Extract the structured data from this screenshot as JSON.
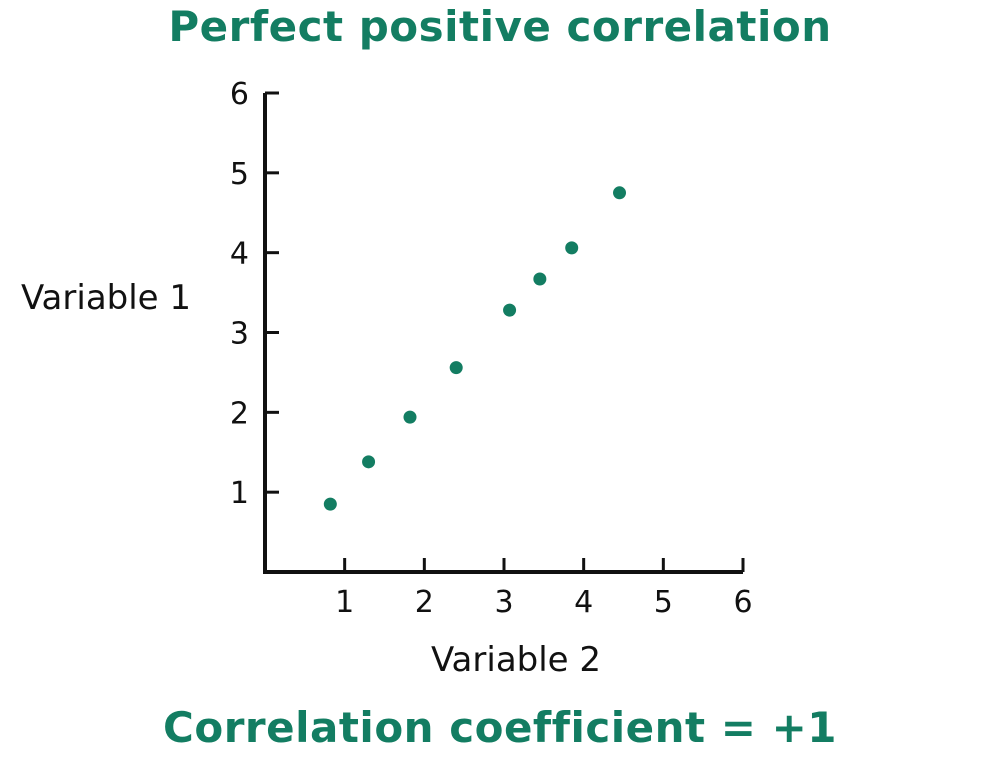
{
  "chart_data": {
    "type": "scatter",
    "title": "Perfect positive correlation",
    "subtitle": "Correlation coefficient = +1",
    "xlabel": "Variable 2",
    "ylabel": "Variable 1",
    "xlim": [
      0,
      6
    ],
    "ylim": [
      0,
      6
    ],
    "xticks": [
      "1",
      "2",
      "3",
      "4",
      "5",
      "6"
    ],
    "yticks": [
      "1",
      "2",
      "3",
      "4",
      "5",
      "6"
    ],
    "grid": false,
    "series": [
      {
        "points": [
          {
            "x": 0.82,
            "y": 0.85
          },
          {
            "x": 1.3,
            "y": 1.38
          },
          {
            "x": 1.82,
            "y": 1.94
          },
          {
            "x": 2.4,
            "y": 2.56
          },
          {
            "x": 3.07,
            "y": 3.28
          },
          {
            "x": 3.45,
            "y": 3.67
          },
          {
            "x": 3.85,
            "y": 4.06
          },
          {
            "x": 4.45,
            "y": 4.75
          }
        ]
      }
    ],
    "colors": {
      "points": "#137d62",
      "title": "#137d62",
      "axes": "#111111"
    }
  }
}
